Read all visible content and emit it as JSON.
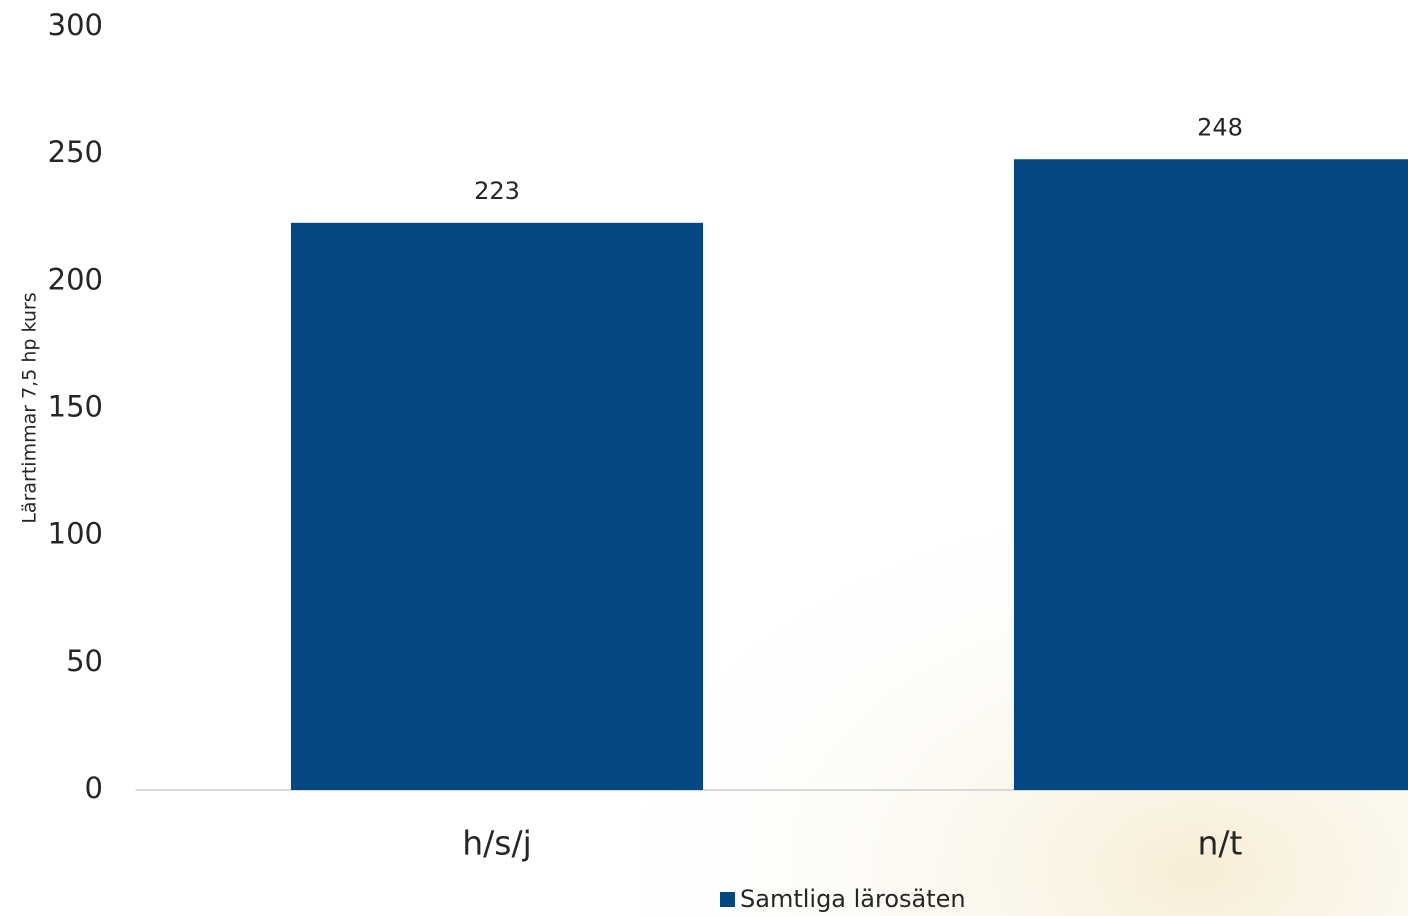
{
  "chart_data": {
    "type": "bar",
    "y_label": "Lärartimmar 7,5 hp kurs",
    "categories": [
      "h/s/j",
      "n/t"
    ],
    "series": [
      {
        "name": "Samtliga lärosäten",
        "color": "#034882",
        "values": [
          223,
          248
        ]
      }
    ],
    "ylim": [
      0,
      300
    ],
    "yticks": [
      0,
      50,
      100,
      150,
      200,
      250,
      300
    ],
    "grid": false,
    "legend": "bottom"
  }
}
